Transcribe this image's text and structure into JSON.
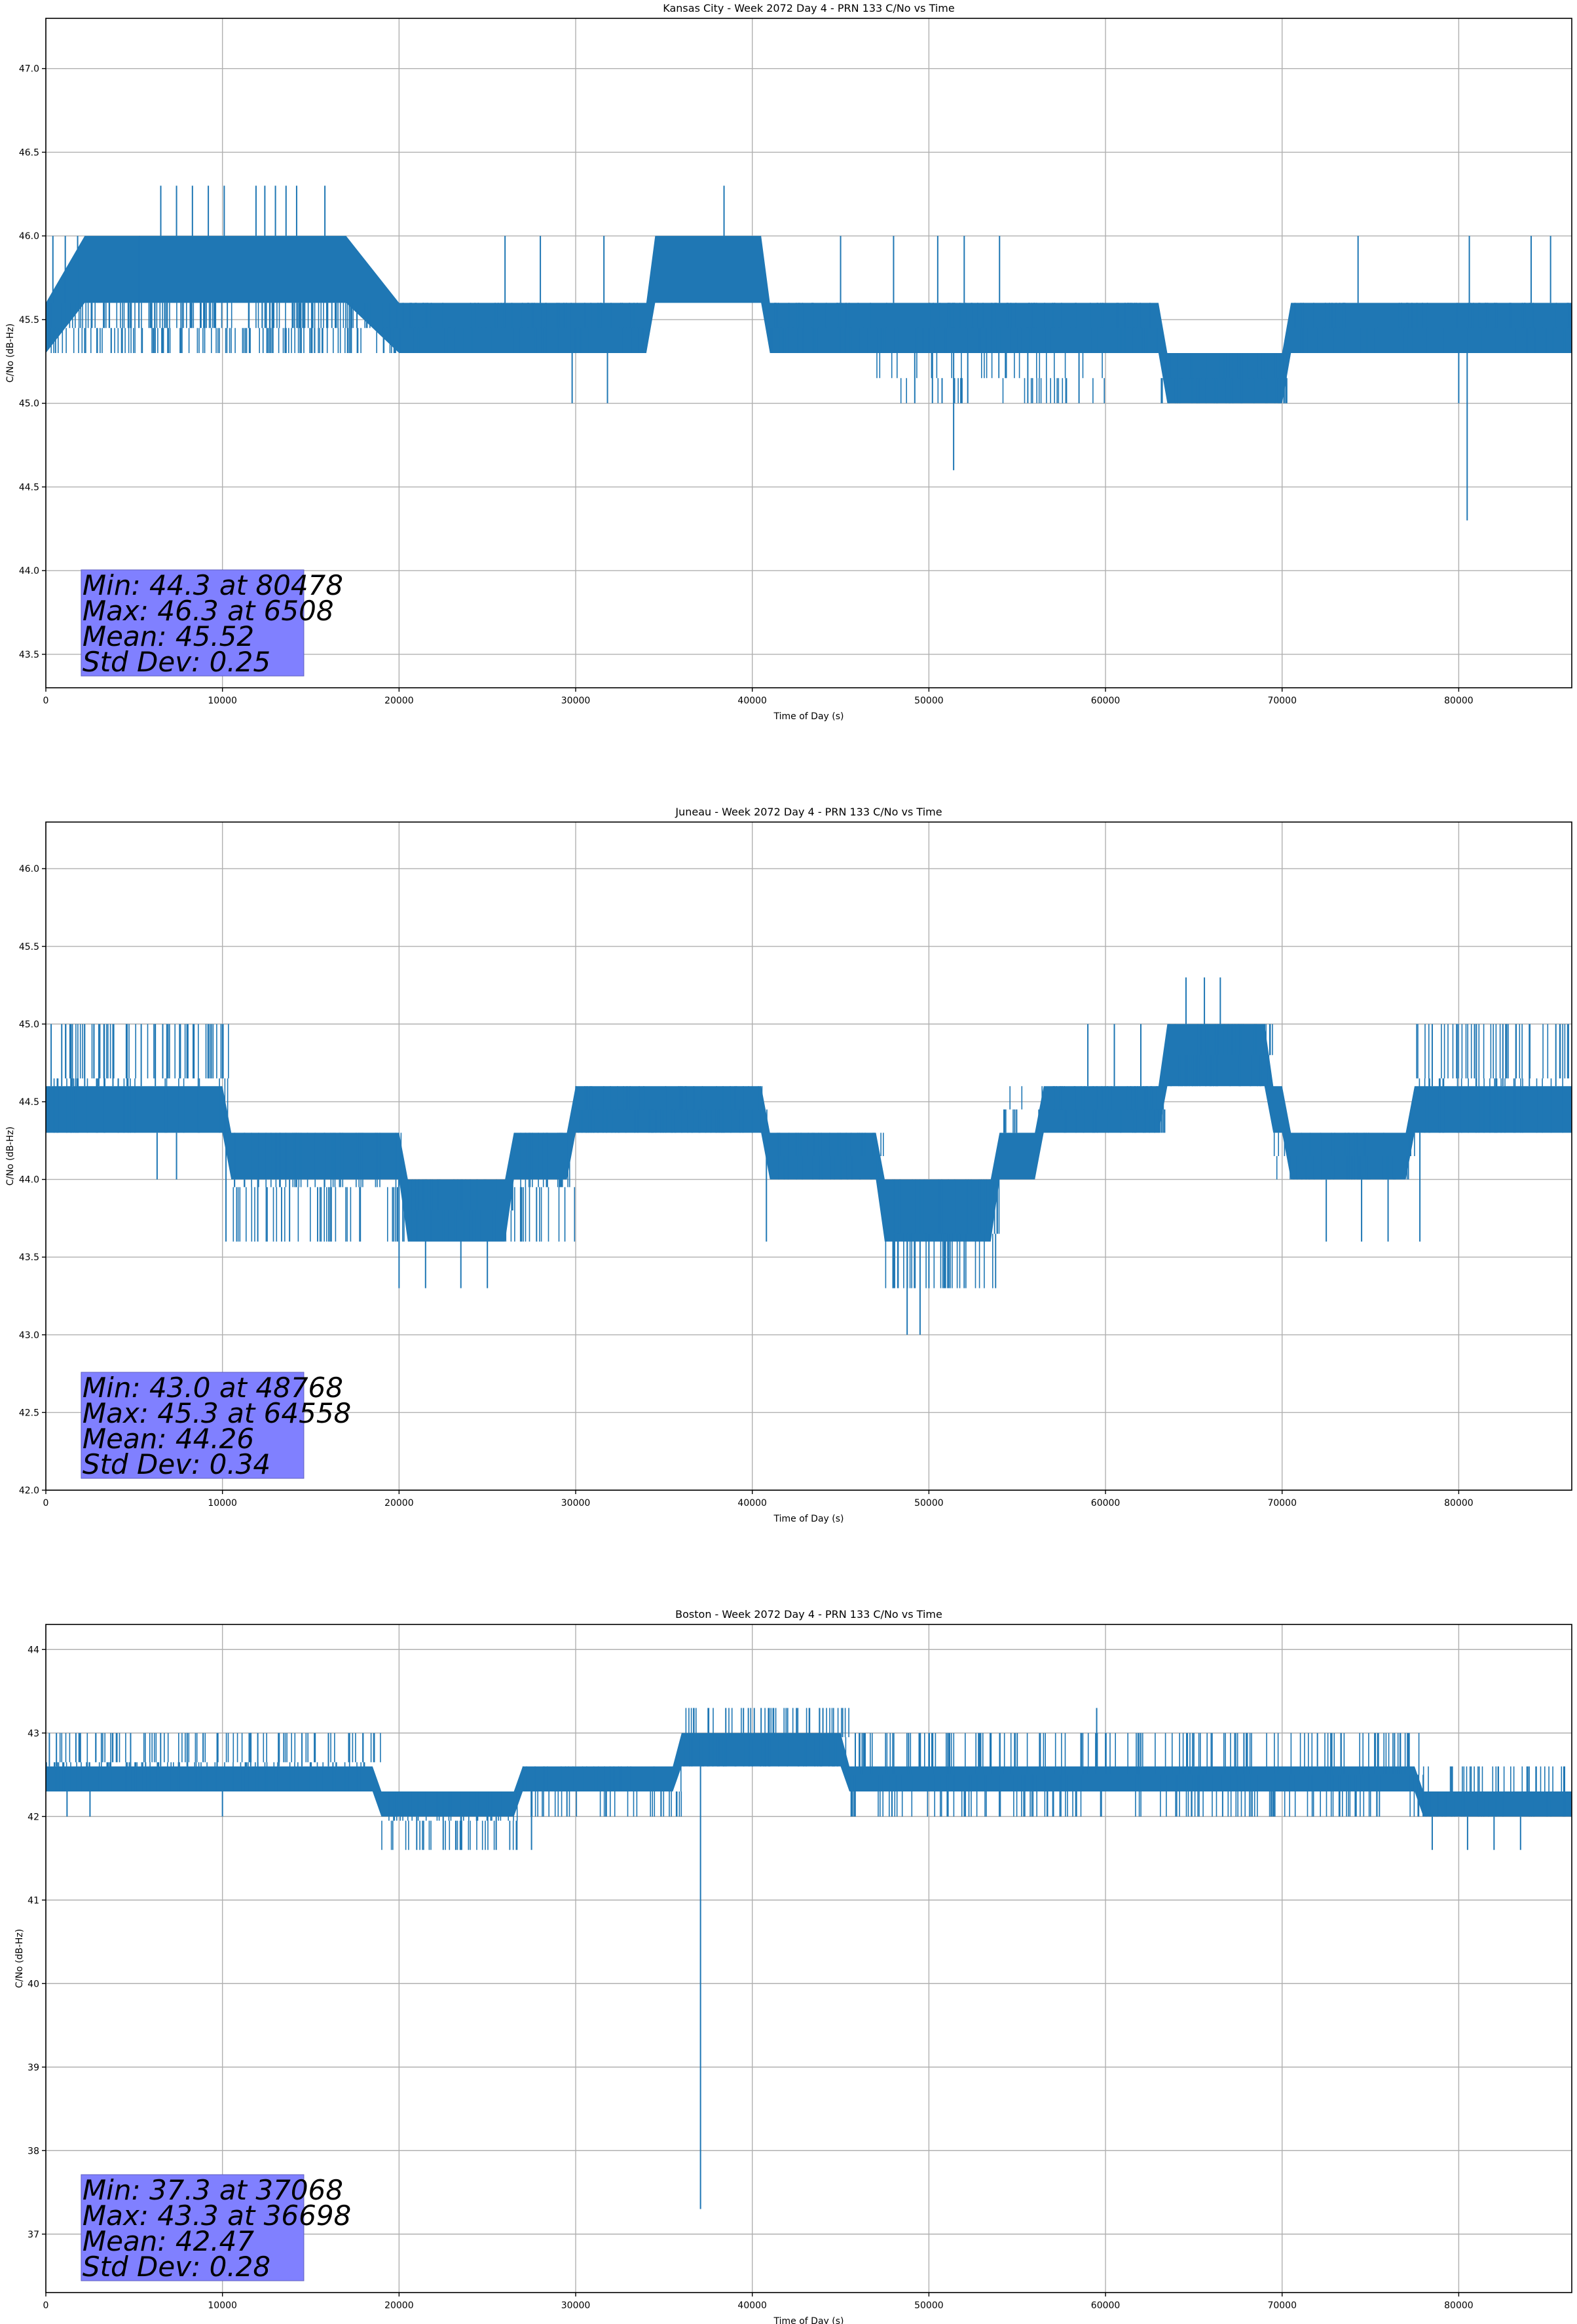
{
  "colors": {
    "series": "#1f77b4",
    "statbox": "#8080ff",
    "grid": "#b0b0b0"
  },
  "chart_data": [
    {
      "type": "line",
      "title": "Kansas City - Week 2072 Day 4 - PRN 133 C/No vs Time",
      "xlabel": "Time of Day (s)",
      "ylabel": "C/No (dB-Hz)",
      "xlim": [
        0,
        86400
      ],
      "ylim": [
        43.3,
        47.3
      ],
      "xticks": [
        0,
        10000,
        20000,
        30000,
        40000,
        50000,
        60000,
        70000,
        80000
      ],
      "yticks": [
        43.5,
        44.0,
        44.5,
        45.0,
        45.5,
        46.0,
        46.5,
        47.0
      ],
      "ytick_decimals": 1,
      "grid": true,
      "stats": [
        "Min: 44.3 at 80478",
        "Max: 46.3 at 6508",
        "Mean: 45.52",
        "Std Dev: 0.25"
      ],
      "series": [
        {
          "band": [
            [
              0,
              45.3,
              45.6
            ],
            [
              2200,
              45.6,
              46.0
            ],
            [
              15000,
              45.6,
              46.0
            ],
            [
              17000,
              45.6,
              46.0
            ],
            [
              20000,
              45.3,
              45.6
            ],
            [
              21500,
              45.3,
              45.6
            ],
            [
              34000,
              45.3,
              45.6
            ],
            [
              34500,
              45.6,
              46.0
            ],
            [
              40500,
              45.6,
              46.0
            ],
            [
              41000,
              45.3,
              45.6
            ],
            [
              63000,
              45.3,
              45.6
            ],
            [
              63500,
              45.0,
              45.3
            ],
            [
              70000,
              45.0,
              45.3
            ],
            [
              70500,
              45.3,
              45.6
            ],
            [
              86400,
              45.3,
              45.6
            ]
          ],
          "spikes": [
            [
              400,
              46.0
            ],
            [
              1100,
              46.0
            ],
            [
              1800,
              46.0
            ],
            [
              5300,
              46.0
            ],
            [
              6508,
              46.3
            ],
            [
              7400,
              46.3
            ],
            [
              8300,
              46.3
            ],
            [
              9200,
              46.3
            ],
            [
              10100,
              46.3
            ],
            [
              11900,
              46.3
            ],
            [
              12400,
              46.3
            ],
            [
              13000,
              46.3
            ],
            [
              13600,
              46.3
            ],
            [
              14200,
              46.3
            ],
            [
              15800,
              46.3
            ],
            [
              38400,
              46.3
            ],
            [
              26000,
              46.0
            ],
            [
              28000,
              46.0
            ],
            [
              31600,
              46.0
            ],
            [
              45000,
              46.0
            ],
            [
              48000,
              46.0
            ],
            [
              50500,
              46.0
            ],
            [
              52000,
              46.0
            ],
            [
              54000,
              46.0
            ],
            [
              74300,
              46.0
            ],
            [
              80600,
              46.0
            ],
            [
              84100,
              46.0
            ],
            [
              85200,
              46.0
            ],
            [
              29800,
              45.0
            ],
            [
              31800,
              45.0
            ],
            [
              51400,
              44.6
            ],
            [
              80478,
              44.3
            ],
            [
              80000,
              45.0
            ],
            [
              49200,
              45.0
            ],
            [
              50200,
              45.0
            ],
            [
              52200,
              45.0
            ],
            [
              55600,
              45.0
            ],
            [
              58500,
              45.0
            ]
          ],
          "noise": [
            [
              0,
              21500,
              45.6,
              45.3,
              0.8
            ],
            [
              21500,
              34000,
              45.6,
              45.3,
              0.4
            ],
            [
              41000,
              63000,
              45.6,
              45.3,
              0.45
            ],
            [
              63000,
              70500,
              45.3,
              45.0,
              0.6
            ],
            [
              70500,
              86400,
              45.6,
              45.3,
              0.3
            ],
            [
              47000,
              60000,
              45.3,
              45.0,
              0.25
            ]
          ]
        }
      ]
    },
    {
      "type": "line",
      "title": "Juneau - Week 2072 Day 4 - PRN 133 C/No vs Time",
      "xlabel": "Time of Day (s)",
      "ylabel": "C/No (dB-Hz)",
      "xlim": [
        0,
        86400
      ],
      "ylim": [
        42.0,
        46.3
      ],
      "xticks": [
        0,
        10000,
        20000,
        30000,
        40000,
        50000,
        60000,
        70000,
        80000
      ],
      "yticks": [
        42.0,
        42.5,
        43.0,
        43.5,
        44.0,
        44.5,
        45.0,
        45.5,
        46.0
      ],
      "ytick_decimals": 1,
      "grid": true,
      "stats": [
        "Min: 43.0 at 48768",
        "Max: 45.3 at 64558",
        "Mean: 44.26",
        "Std Dev: 0.34"
      ],
      "series": [
        {
          "band": [
            [
              0,
              44.3,
              44.6
            ],
            [
              10000,
              44.3,
              44.6
            ],
            [
              10500,
              44.0,
              44.3
            ],
            [
              20000,
              44.0,
              44.3
            ],
            [
              20500,
              43.6,
              44.0
            ],
            [
              26000,
              43.6,
              44.0
            ],
            [
              26500,
              44.0,
              44.3
            ],
            [
              29500,
              44.0,
              44.3
            ],
            [
              30000,
              44.3,
              44.6
            ],
            [
              40500,
              44.3,
              44.6
            ],
            [
              41000,
              44.0,
              44.3
            ],
            [
              47000,
              44.0,
              44.3
            ],
            [
              47500,
              43.6,
              44.0
            ],
            [
              53500,
              43.6,
              44.0
            ],
            [
              54000,
              44.0,
              44.3
            ],
            [
              56000,
              44.0,
              44.3
            ],
            [
              56500,
              44.3,
              44.6
            ],
            [
              63000,
              44.3,
              44.6
            ],
            [
              63500,
              44.6,
              45.0
            ],
            [
              69000,
              44.6,
              45.0
            ],
            [
              69500,
              44.3,
              44.6
            ],
            [
              70000,
              44.3,
              44.6
            ],
            [
              70500,
              44.0,
              44.3
            ],
            [
              77000,
              44.0,
              44.3
            ],
            [
              77500,
              44.3,
              44.6
            ],
            [
              86400,
              44.3,
              44.6
            ]
          ],
          "spikes": [
            [
              300,
              45.0
            ],
            [
              900,
              45.0
            ],
            [
              1500,
              45.0
            ],
            [
              2200,
              45.0
            ],
            [
              3000,
              45.0
            ],
            [
              3800,
              45.0
            ],
            [
              4600,
              45.0
            ],
            [
              5400,
              45.0
            ],
            [
              6200,
              45.0
            ],
            [
              59000,
              45.0
            ],
            [
              60500,
              45.0
            ],
            [
              62000,
              45.0
            ],
            [
              64558,
              45.3
            ],
            [
              65600,
              45.3
            ],
            [
              66500,
              45.3
            ],
            [
              78500,
              45.0
            ],
            [
              81000,
              45.0
            ],
            [
              82500,
              45.0
            ],
            [
              84000,
              45.0
            ],
            [
              85500,
              45.0
            ],
            [
              20000,
              43.3
            ],
            [
              21500,
              43.3
            ],
            [
              23500,
              43.3
            ],
            [
              25000,
              43.3
            ],
            [
              40800,
              43.6
            ],
            [
              48768,
              43.0
            ],
            [
              49500,
              43.0
            ],
            [
              48000,
              43.3
            ],
            [
              50000,
              43.3
            ],
            [
              51200,
              43.3
            ],
            [
              52000,
              43.3
            ],
            [
              10200,
              43.6
            ],
            [
              12000,
              43.6
            ],
            [
              13800,
              43.6
            ],
            [
              72500,
              43.6
            ],
            [
              74500,
              43.6
            ],
            [
              76000,
              43.6
            ],
            [
              77800,
              43.6
            ],
            [
              6300,
              44.0
            ],
            [
              7400,
              44.0
            ]
          ],
          "noise": [
            [
              0,
              10500,
              45.0,
              44.3,
              0.5
            ],
            [
              10500,
              20500,
              44.3,
              43.6,
              0.5
            ],
            [
              20500,
              26500,
              44.0,
              43.6,
              0.7
            ],
            [
              26500,
              30000,
              44.3,
              43.6,
              0.6
            ],
            [
              30000,
              41000,
              44.6,
              44.3,
              0.5
            ],
            [
              41000,
              47500,
              44.3,
              44.0,
              0.45
            ],
            [
              47500,
              54000,
              44.0,
              43.3,
              0.55
            ],
            [
              54000,
              63500,
              44.6,
              44.3,
              0.45
            ],
            [
              63500,
              69500,
              45.0,
              44.6,
              0.6
            ],
            [
              69500,
              77500,
              44.3,
              44.0,
              0.45
            ],
            [
              77500,
              86400,
              45.0,
              44.3,
              0.5
            ]
          ]
        }
      ]
    },
    {
      "type": "line",
      "title": "Boston - Week 2072 Day 4 - PRN 133 C/No vs Time",
      "xlabel": "Time of Day (s)",
      "ylabel": "C/No (dB-Hz)",
      "xlim": [
        0,
        86400
      ],
      "ylim": [
        36.3,
        44.3
      ],
      "xticks": [
        0,
        10000,
        20000,
        30000,
        40000,
        50000,
        60000,
        70000,
        80000
      ],
      "yticks": [
        37,
        38,
        39,
        40,
        41,
        42,
        43,
        44
      ],
      "ytick_decimals": 0,
      "grid": true,
      "stats": [
        "Min: 37.3 at 37068",
        "Max: 43.3 at 36698",
        "Mean: 42.47",
        "Std Dev: 0.28"
      ],
      "series": [
        {
          "band": [
            [
              0,
              42.3,
              42.6
            ],
            [
              18500,
              42.3,
              42.6
            ],
            [
              19000,
              42.0,
              42.3
            ],
            [
              26500,
              42.0,
              42.3
            ],
            [
              27000,
              42.3,
              42.6
            ],
            [
              35500,
              42.3,
              42.6
            ],
            [
              36000,
              42.6,
              43.0
            ],
            [
              45000,
              42.6,
              43.0
            ],
            [
              45500,
              42.3,
              42.6
            ],
            [
              77500,
              42.3,
              42.6
            ],
            [
              78000,
              42.0,
              42.3
            ],
            [
              86400,
              42.0,
              42.3
            ]
          ],
          "spikes": [
            [
              200,
              43.0
            ],
            [
              600,
              43.0
            ],
            [
              4800,
              43.0
            ],
            [
              6500,
              43.0
            ],
            [
              8000,
              43.0
            ],
            [
              9700,
              43.0
            ],
            [
              11600,
              43.0
            ],
            [
              12000,
              43.0
            ],
            [
              13200,
              43.0
            ],
            [
              14500,
              43.0
            ],
            [
              16000,
              43.0
            ],
            [
              36698,
              43.3
            ],
            [
              37500,
              43.3
            ],
            [
              38500,
              43.3
            ],
            [
              39500,
              43.3
            ],
            [
              40500,
              43.3
            ],
            [
              42000,
              43.3
            ],
            [
              44000,
              43.3
            ],
            [
              59500,
              43.3
            ],
            [
              50000,
              43.0
            ],
            [
              55000,
              43.0
            ],
            [
              62000,
              43.0
            ],
            [
              65000,
              43.0
            ],
            [
              68000,
              43.0
            ],
            [
              72000,
              43.0
            ],
            [
              37068,
              37.3
            ],
            [
              1200,
              42.0
            ],
            [
              2500,
              42.0
            ],
            [
              10000,
              42.0
            ],
            [
              21000,
              41.6
            ],
            [
              22500,
              41.6
            ],
            [
              23500,
              41.6
            ],
            [
              25500,
              41.6
            ],
            [
              27500,
              41.6
            ],
            [
              78500,
              41.6
            ],
            [
              80500,
              41.6
            ],
            [
              82000,
              41.6
            ],
            [
              83500,
              41.6
            ]
          ],
          "noise": [
            [
              0,
              19000,
              43.0,
              42.3,
              0.5
            ],
            [
              19000,
              27000,
              42.3,
              41.6,
              0.45
            ],
            [
              27000,
              36000,
              42.6,
              42.0,
              0.4
            ],
            [
              36000,
              45500,
              43.3,
              42.6,
              0.55
            ],
            [
              45500,
              78000,
              43.0,
              42.0,
              0.5
            ],
            [
              78000,
              86400,
              42.6,
              42.0,
              0.45
            ]
          ]
        }
      ]
    }
  ]
}
